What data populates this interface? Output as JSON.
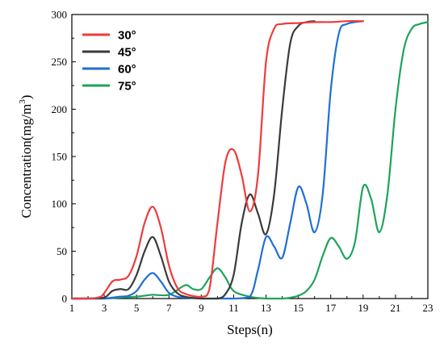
{
  "chart_data": {
    "type": "line",
    "title": "",
    "xlabel": "Steps(n)",
    "ylabel_main": "Concentration(mg/m",
    "ylabel_sup": "3",
    "ylabel_close": ")",
    "xlim": [
      1,
      23
    ],
    "ylim": [
      0,
      300
    ],
    "xticks": [
      1,
      3,
      5,
      7,
      9,
      11,
      13,
      15,
      17,
      19,
      21,
      23
    ],
    "yticks": [
      0,
      50,
      100,
      150,
      200,
      250,
      300
    ],
    "legend_position": "top-left",
    "grid": false,
    "series": [
      {
        "name": "30°",
        "color": "#ef3b3b",
        "x": [
          1,
          2,
          2.8,
          3.5,
          4,
          4.5,
          5,
          5.5,
          6,
          6.5,
          7,
          7.5,
          8,
          9,
          9.5,
          10,
          10.5,
          11,
          11.5,
          12,
          12.5,
          13,
          13.5,
          14,
          15,
          16,
          17,
          18,
          19
        ],
        "y": [
          0,
          0,
          2,
          18,
          20,
          24,
          45,
          80,
          97,
          75,
          35,
          12,
          5,
          2,
          10,
          80,
          145,
          157,
          130,
          92,
          130,
          250,
          285,
          290,
          291,
          292,
          292,
          293,
          293
        ]
      },
      {
        "name": "45°",
        "color": "#3a3a3a",
        "x": [
          1,
          2,
          3,
          3.5,
          4,
          4.5,
          5,
          5.5,
          6,
          6.5,
          7,
          7.5,
          8,
          9,
          10,
          10.5,
          11,
          11.5,
          12,
          12.5,
          13,
          13.5,
          14,
          14.5,
          15,
          15.5,
          16
        ],
        "y": [
          0,
          0,
          1,
          8,
          10,
          10,
          25,
          50,
          65,
          45,
          18,
          6,
          2,
          0,
          0,
          5,
          25,
          80,
          110,
          90,
          68,
          110,
          200,
          270,
          288,
          292,
          293
        ]
      },
      {
        "name": "60°",
        "color": "#1f6fd6",
        "x": [
          1,
          2,
          3,
          3.5,
          4,
          4.5,
          5,
          5.5,
          6,
          6.5,
          7,
          7.5,
          8,
          9,
          10,
          11,
          12,
          12.5,
          13,
          13.5,
          14,
          14.5,
          15,
          15.5,
          16,
          16.5,
          17,
          17.5,
          18,
          19
        ],
        "y": [
          0,
          0,
          0,
          1,
          2,
          3,
          8,
          20,
          27,
          18,
          6,
          2,
          1,
          0,
          0,
          0,
          2,
          30,
          65,
          55,
          43,
          80,
          118,
          100,
          70,
          110,
          220,
          280,
          290,
          293
        ]
      },
      {
        "name": "75°",
        "color": "#1ea35a",
        "x": [
          1,
          2,
          3,
          4,
          5,
          5.5,
          6,
          7,
          8,
          8.5,
          9,
          9.5,
          10,
          10.5,
          11,
          12,
          13,
          14,
          14.5,
          15,
          15.5,
          16,
          16.5,
          17,
          17.5,
          18,
          18.5,
          19,
          19.5,
          20,
          20.5,
          21,
          21.5,
          22,
          22.5,
          23
        ],
        "y": [
          0,
          0,
          0,
          1,
          2,
          3,
          4,
          4,
          14,
          10,
          10,
          22,
          32,
          22,
          8,
          2,
          0,
          0,
          1,
          3,
          8,
          20,
          45,
          64,
          55,
          42,
          60,
          118,
          105,
          70,
          110,
          200,
          262,
          285,
          290,
          292
        ]
      }
    ]
  }
}
